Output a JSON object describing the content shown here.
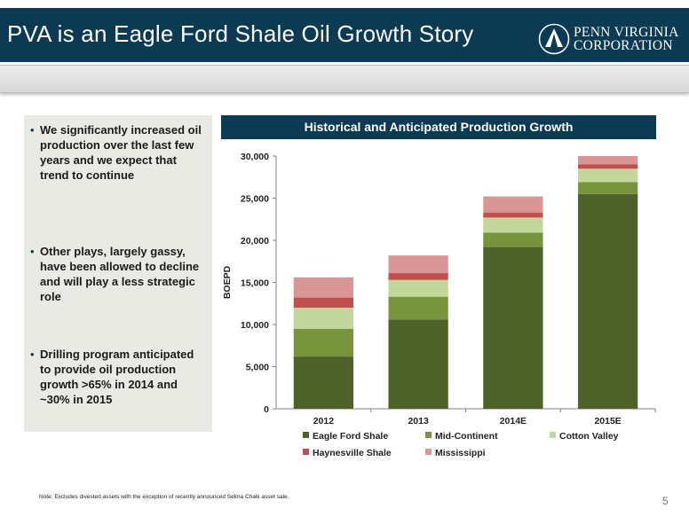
{
  "header": {
    "title": "PVA is an Eagle Ford Shale Oil Growth Story",
    "logo": {
      "line1": "PENN VIRGINIA",
      "line2": "CORPORATION"
    }
  },
  "bullets": [
    {
      "text": "We significantly increased oil production over the last few years and we expect that trend to continue"
    },
    {
      "text": "Other plays, largely gassy, have been allowed to decline and will play a less strategic role"
    },
    {
      "text": "Drilling program anticipated to provide oil production growth >65% in 2014 and ~30% in 2015"
    }
  ],
  "chart_data": {
    "type": "bar",
    "stacked": true,
    "title": "Historical and Anticipated Production Growth",
    "xlabel": "",
    "ylabel": "BOEPD",
    "ylim": [
      0,
      30000
    ],
    "yticks": [
      0,
      5000,
      10000,
      15000,
      20000,
      25000,
      30000
    ],
    "ytick_labels": [
      "0",
      "5,000",
      "10,000",
      "15,000",
      "20,000",
      "25,000",
      "30,000"
    ],
    "categories": [
      "2012",
      "2013",
      "2014E",
      "2015E"
    ],
    "series": [
      {
        "name": "Eagle Ford Shale",
        "color": "#4e6128",
        "values": [
          6200,
          10600,
          19200,
          25500
        ]
      },
      {
        "name": "Mid-Continent",
        "color": "#77933c",
        "values": [
          3300,
          2700,
          1700,
          1400
        ]
      },
      {
        "name": "Cotton Valley",
        "color": "#c3d69b",
        "values": [
          2500,
          2000,
          1800,
          1600
        ]
      },
      {
        "name": "Haynesville Shale",
        "color": "#c0504d",
        "values": [
          1200,
          800,
          600,
          500
        ]
      },
      {
        "name": "Mississippi",
        "color": "#d99694",
        "values": [
          2400,
          2100,
          1900,
          1000
        ]
      }
    ],
    "grid": false,
    "legend_position": "bottom"
  },
  "footnote": "Note: Excludes divested assets with the exception of recently announced Selma Chalk asset sale.",
  "page_number": "5",
  "colors": {
    "header_bg": "#0b3a52",
    "panel_bg": "#e9eae4"
  }
}
